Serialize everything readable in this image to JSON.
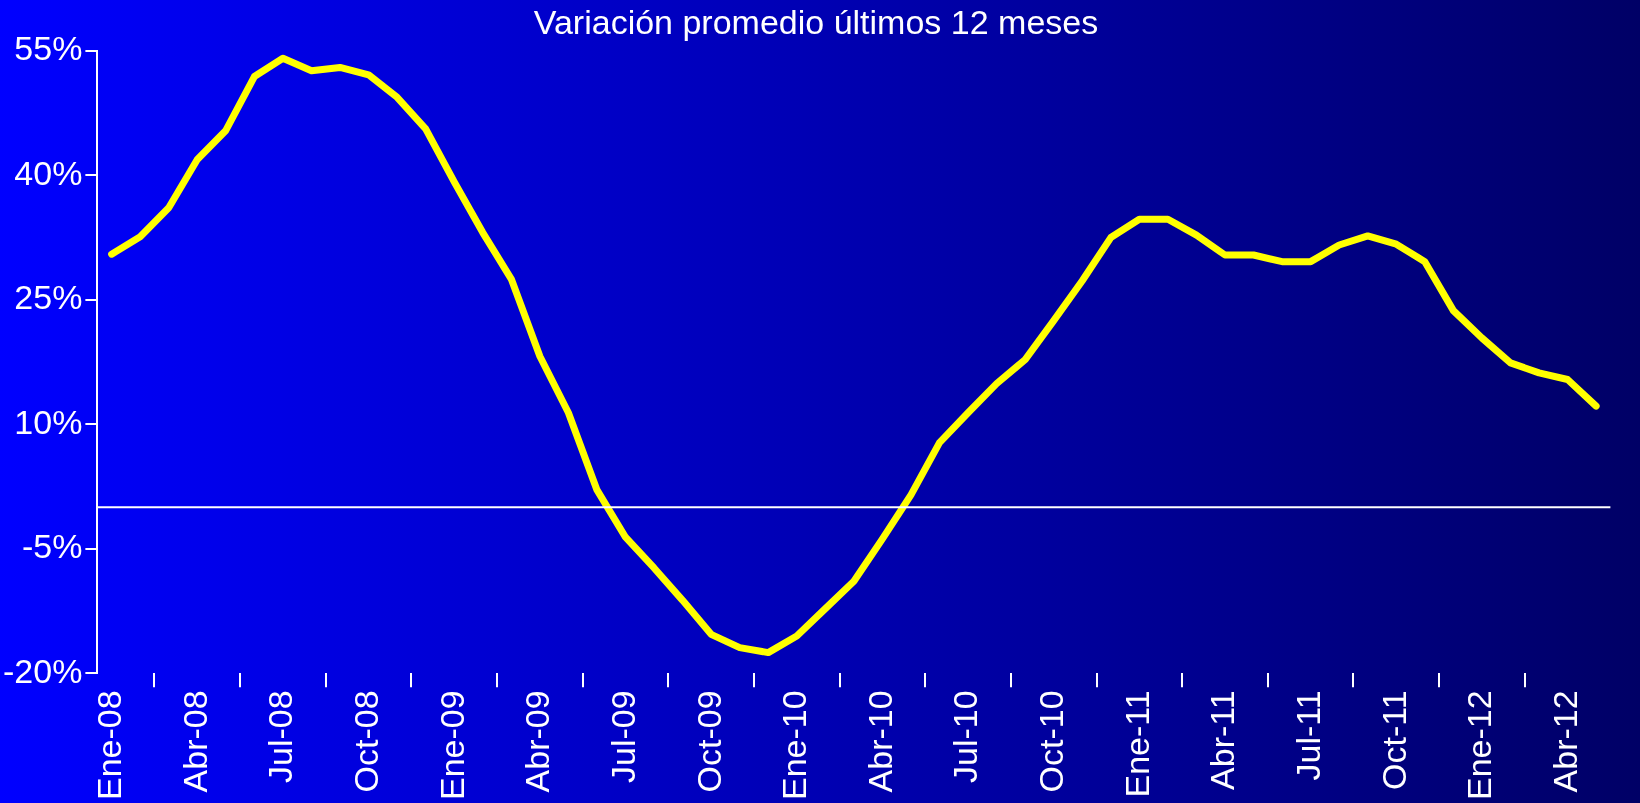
{
  "chart_data": {
    "type": "line",
    "title": "Variación promedio últimos 12 meses",
    "categories": [
      "Ene-08",
      null,
      null,
      "Abr-08",
      null,
      null,
      "Jul-08",
      null,
      null,
      "Oct-08",
      null,
      null,
      "Ene-09",
      null,
      null,
      "Abr-09",
      null,
      null,
      "Jul-09",
      null,
      null,
      "Oct-09",
      null,
      null,
      "Ene-10",
      null,
      null,
      "Abr-10",
      null,
      null,
      "Jul-10",
      null,
      null,
      "Oct-10",
      null,
      null,
      "Ene-11",
      null,
      null,
      "Abr-11",
      null,
      null,
      "Jul-11",
      null,
      null,
      "Oct-11",
      null,
      null,
      "Ene-12",
      null,
      null,
      "Abr-12",
      null
    ],
    "series": [
      {
        "color": "#ffff00",
        "values": [
          30.5,
          32.6,
          36.1,
          41.9,
          45.4,
          51.9,
          54.1,
          52.6,
          53.0,
          52.1,
          49.4,
          45.6,
          39.2,
          33.1,
          27.5,
          18.2,
          11.4,
          2.1,
          -3.6,
          -7.3,
          -11.2,
          -15.3,
          -16.9,
          -17.5,
          -15.5,
          -12.2,
          -8.9,
          -3.8,
          1.5,
          7.8,
          11.4,
          14.9,
          17.8,
          22.5,
          27.3,
          32.5,
          34.7,
          34.7,
          32.8,
          30.4,
          30.4,
          29.6,
          29.6,
          31.6,
          32.7,
          31.7,
          29.6,
          23.7,
          20.4,
          17.4,
          16.2,
          15.4,
          12.2
        ]
      }
    ],
    "ylim": [
      -20,
      55
    ],
    "yticks": [
      {
        "value": -20,
        "label": "-20%"
      },
      {
        "value": -5,
        "label": "-5%"
      },
      {
        "value": 10,
        "label": "10%"
      },
      {
        "value": 25,
        "label": "25%"
      },
      {
        "value": 40,
        "label": "40%"
      },
      {
        "value": 55,
        "label": "55%"
      }
    ],
    "ref_lines": [
      {
        "axis": "y",
        "value": 0,
        "color": "#ffffff"
      }
    ],
    "marker": "none",
    "line_style": "solid",
    "grid": false,
    "legend": false
  }
}
